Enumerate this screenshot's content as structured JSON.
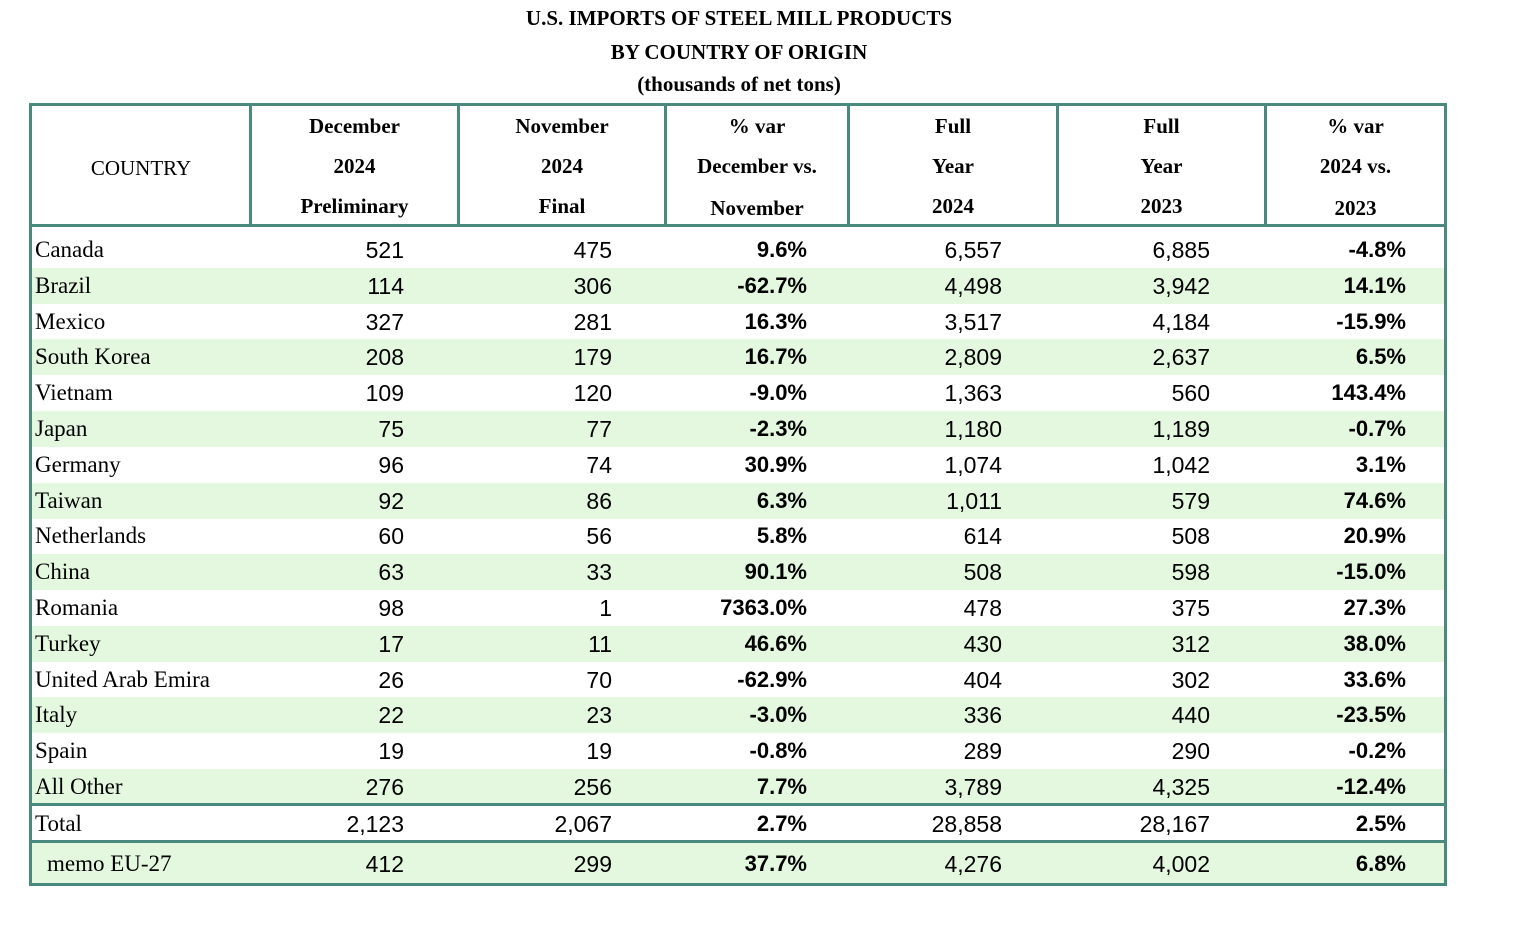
{
  "title": {
    "line1": "U.S. IMPORTS OF STEEL MILL PRODUCTS",
    "line2": "BY COUNTRY OF ORIGIN",
    "line3": "(thousands of net tons)"
  },
  "headers": {
    "country": "COUNTRY",
    "dec": [
      "December",
      "2024",
      "Preliminary"
    ],
    "nov": [
      "November",
      "2024",
      "Final"
    ],
    "var_month": [
      "% var",
      "December vs.",
      "November"
    ],
    "fy2024": [
      "Full",
      "Year",
      "2024"
    ],
    "fy2023": [
      "Full",
      "Year",
      "2023"
    ],
    "var_year": [
      "% var",
      "2024 vs.",
      "2023"
    ]
  },
  "rows": [
    {
      "country": "Canada",
      "dec": "521",
      "nov": "475",
      "var_month": "9.6%",
      "fy2024": "6,557",
      "fy2023": "6,885",
      "var_year": "-4.8%"
    },
    {
      "country": "Brazil",
      "dec": "114",
      "nov": "306",
      "var_month": "-62.7%",
      "fy2024": "4,498",
      "fy2023": "3,942",
      "var_year": "14.1%"
    },
    {
      "country": "Mexico",
      "dec": "327",
      "nov": "281",
      "var_month": "16.3%",
      "fy2024": "3,517",
      "fy2023": "4,184",
      "var_year": "-15.9%"
    },
    {
      "country": "South Korea",
      "dec": "208",
      "nov": "179",
      "var_month": "16.7%",
      "fy2024": "2,809",
      "fy2023": "2,637",
      "var_year": "6.5%"
    },
    {
      "country": "Vietnam",
      "dec": "109",
      "nov": "120",
      "var_month": "-9.0%",
      "fy2024": "1,363",
      "fy2023": "560",
      "var_year": "143.4%"
    },
    {
      "country": "Japan",
      "dec": "75",
      "nov": "77",
      "var_month": "-2.3%",
      "fy2024": "1,180",
      "fy2023": "1,189",
      "var_year": "-0.7%"
    },
    {
      "country": "Germany",
      "dec": "96",
      "nov": "74",
      "var_month": "30.9%",
      "fy2024": "1,074",
      "fy2023": "1,042",
      "var_year": "3.1%"
    },
    {
      "country": "Taiwan",
      "dec": "92",
      "nov": "86",
      "var_month": "6.3%",
      "fy2024": "1,011",
      "fy2023": "579",
      "var_year": "74.6%"
    },
    {
      "country": "Netherlands",
      "dec": "60",
      "nov": "56",
      "var_month": "5.8%",
      "fy2024": "614",
      "fy2023": "508",
      "var_year": "20.9%"
    },
    {
      "country": "China",
      "dec": "63",
      "nov": "33",
      "var_month": "90.1%",
      "fy2024": "508",
      "fy2023": "598",
      "var_year": "-15.0%"
    },
    {
      "country": "Romania",
      "dec": "98",
      "nov": "1",
      "var_month": "7363.0%",
      "fy2024": "478",
      "fy2023": "375",
      "var_year": "27.3%"
    },
    {
      "country": "Turkey",
      "dec": "17",
      "nov": "11",
      "var_month": "46.6%",
      "fy2024": "430",
      "fy2023": "312",
      "var_year": "38.0%"
    },
    {
      "country": "United Arab Emira",
      "dec": "26",
      "nov": "70",
      "var_month": "-62.9%",
      "fy2024": "404",
      "fy2023": "302",
      "var_year": "33.6%"
    },
    {
      "country": "Italy",
      "dec": "22",
      "nov": "23",
      "var_month": "-3.0%",
      "fy2024": "336",
      "fy2023": "440",
      "var_year": "-23.5%"
    },
    {
      "country": "Spain",
      "dec": "19",
      "nov": "19",
      "var_month": "-0.8%",
      "fy2024": "289",
      "fy2023": "290",
      "var_year": "-0.2%"
    },
    {
      "country": "All Other",
      "dec": "276",
      "nov": "256",
      "var_month": "7.7%",
      "fy2024": "3,789",
      "fy2023": "4,325",
      "var_year": "-12.4%"
    }
  ],
  "total": {
    "country": "Total",
    "dec": "2,123",
    "nov": "2,067",
    "var_month": "2.7%",
    "fy2024": "28,858",
    "fy2023": "28,167",
    "var_year": "2.5%"
  },
  "memo": {
    "country": "memo EU-27",
    "dec": "412",
    "nov": "299",
    "var_month": "37.7%",
    "fy2024": "4,276",
    "fy2023": "4,002",
    "var_year": "6.8%"
  }
}
